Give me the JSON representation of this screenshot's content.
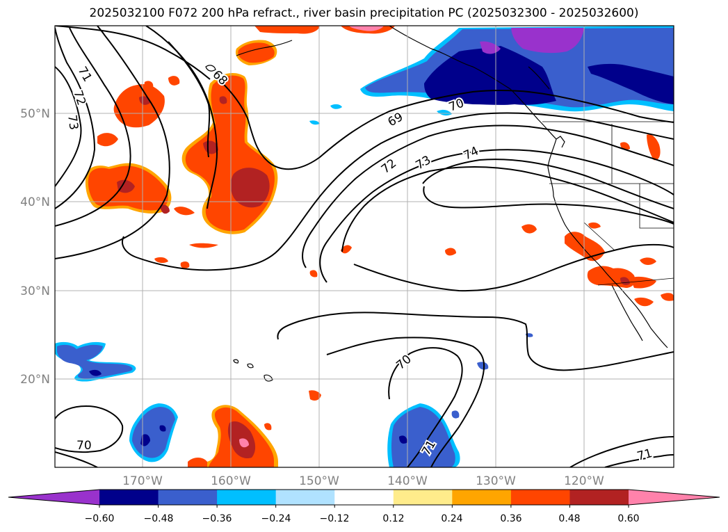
{
  "title": "2025032100 F072 200 hPa refract., river basin precipitation PC (2025032300 - 2025032600)",
  "latitude_labels": [
    "50°N",
    "40°N",
    "30°N",
    "20°N"
  ],
  "longitude_labels": [
    "170°W",
    "160°W",
    "150°W",
    "140°W",
    "130°W",
    "120°W"
  ],
  "contour_labels": [
    "71",
    "72",
    "73",
    "68",
    "69",
    "70",
    "72",
    "73",
    "74",
    "70",
    "71",
    "71"
  ],
  "colorbar": {
    "tick_labels": [
      "−0.60",
      "−0.48",
      "−0.36",
      "−0.24",
      "−0.12",
      "0.12",
      "0.24",
      "0.36",
      "0.48",
      "0.60"
    ],
    "colors": [
      "#9932cc",
      "#00008b",
      "#3a5fcd",
      "#00bfff",
      "#b0e2ff",
      "#ffffff",
      "#ffec8b",
      "#ffa500",
      "#ff4500",
      "#b22222",
      "#ff82ab"
    ]
  },
  "colors": {
    "negative_strong": "#00008b",
    "negative_mid": "#3a5fcd",
    "negative_light": "#00bfff",
    "positive_mid": "#ff4500",
    "positive_strong": "#b22222",
    "positive_extreme": "#ff82ab"
  }
}
